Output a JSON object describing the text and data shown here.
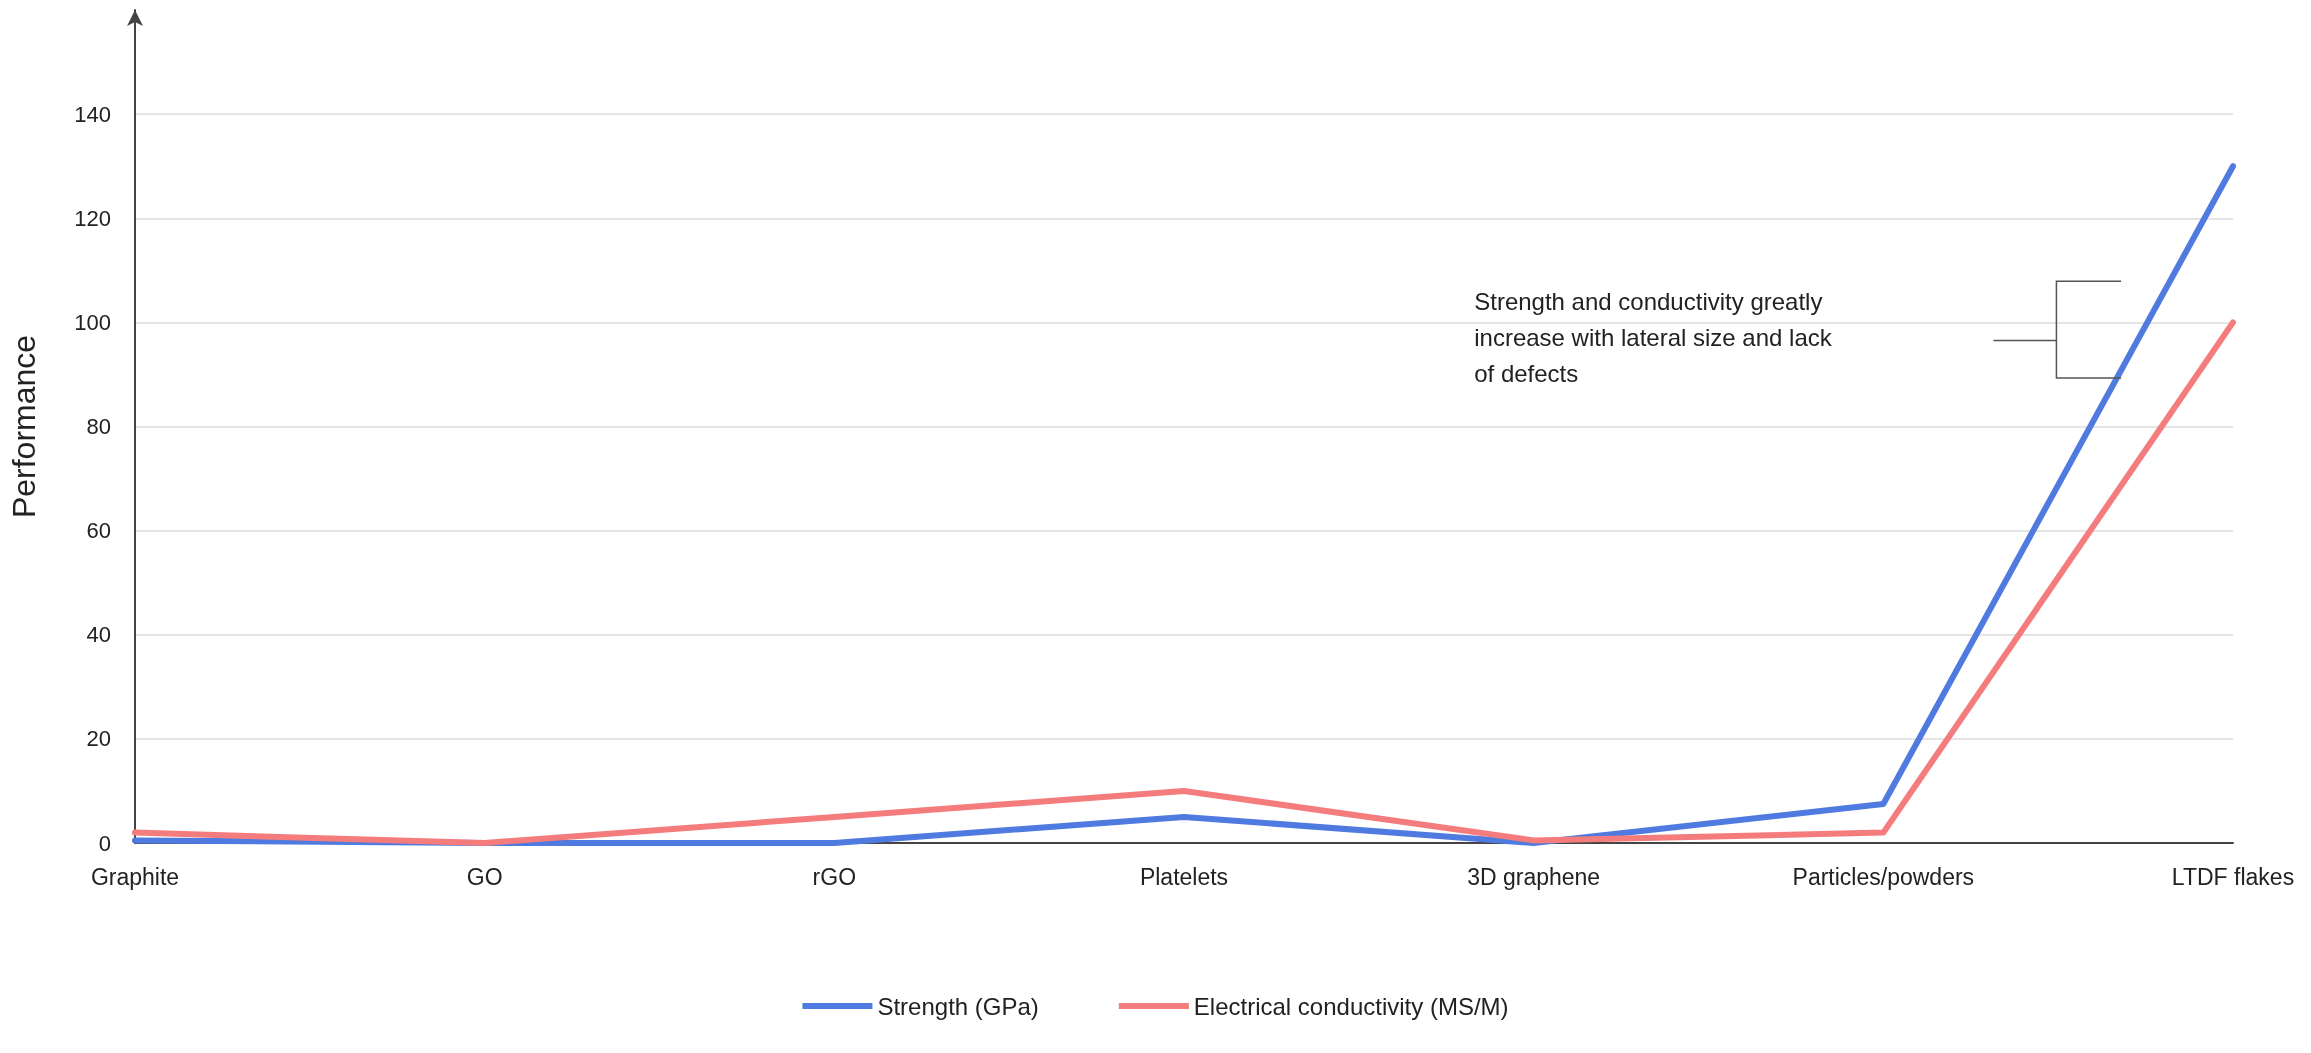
{
  "chart_data": {
    "type": "line",
    "ylabel": "Performance",
    "categories": [
      "Graphite",
      "GO",
      "rGO",
      "Platelets",
      "3D graphene",
      "Particles/powders",
      "LTDF flakes"
    ],
    "series": [
      {
        "name": "Strength (GPa)",
        "color": "#4f7be0",
        "values": [
          0.5,
          0,
          0,
          5,
          0,
          7.5,
          130
        ]
      },
      {
        "name": "Electrical conductivity (MS/M)",
        "color": "#f47c7c",
        "values": [
          2,
          0,
          5,
          10,
          0.5,
          2,
          100
        ]
      }
    ],
    "ylim": [
      0,
      160
    ],
    "yticks": [
      0,
      20,
      40,
      60,
      80,
      100,
      120,
      140
    ],
    "grid": "y",
    "legend": "bottom",
    "marker": "none",
    "line_style": "solid",
    "annotations": [
      "Strength and conductivity greatly increase with lateral size and lack of defects"
    ]
  }
}
